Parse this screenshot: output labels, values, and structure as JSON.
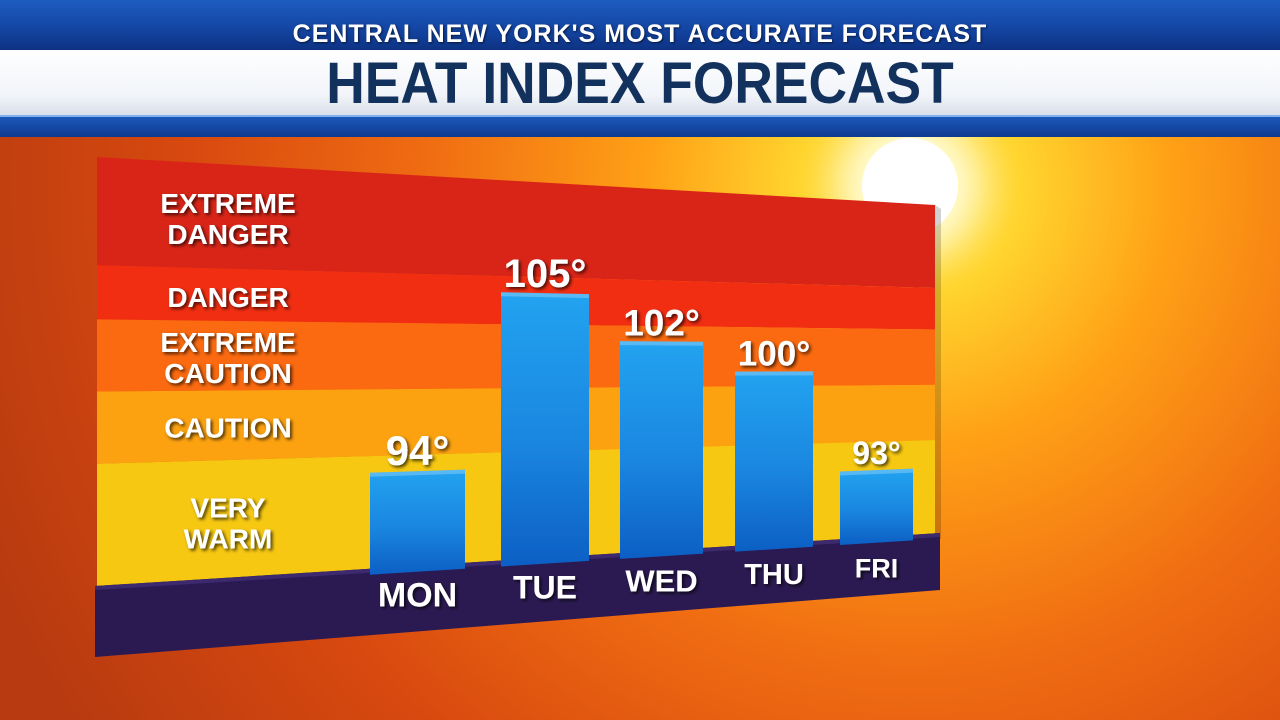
{
  "header": {
    "subtitle": "CENTRAL NEW YORK'S MOST ACCURATE FORECAST",
    "title": "HEAT INDEX FORECAST"
  },
  "colors": {
    "extreme_danger": "#d92518",
    "danger": "#f22e12",
    "extreme_caution": "#fb6a10",
    "caution": "#fca210",
    "very_warm": "#f6c812",
    "bar": "#1e90e6",
    "base": "#2b1a52"
  },
  "chart_data": {
    "type": "bar",
    "title": "HEAT INDEX FORECAST",
    "categories": [
      "MON",
      "TUE",
      "WED",
      "THU",
      "FRI"
    ],
    "values": [
      94,
      105,
      102,
      100,
      93
    ],
    "value_labels": [
      "94°",
      "105°",
      "102°",
      "100°",
      "93°"
    ],
    "unit": "°",
    "ylim": [
      88,
      112
    ],
    "zones": [
      {
        "label_lines": [
          "EXTREME",
          "DANGER"
        ],
        "from": 106,
        "to": 112
      },
      {
        "label_lines": [
          "DANGER"
        ],
        "from": 103,
        "to": 106
      },
      {
        "label_lines": [
          "EXTREME",
          "CAUTION"
        ],
        "from": 99,
        "to": 103
      },
      {
        "label_lines": [
          "CAUTION"
        ],
        "from": 95,
        "to": 99
      },
      {
        "label_lines": [
          "VERY",
          "WARM"
        ],
        "from": 88,
        "to": 95
      }
    ],
    "grid": false,
    "legend": "none"
  }
}
